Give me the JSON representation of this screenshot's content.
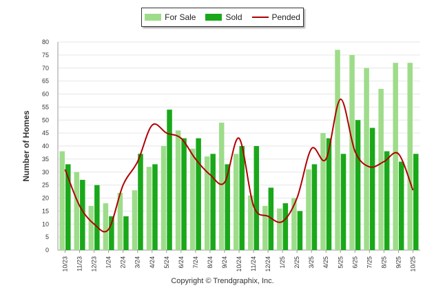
{
  "chart_data": {
    "type": "bar",
    "categories": [
      "10/23",
      "11/23",
      "12/23",
      "1/24",
      "2/24",
      "3/24",
      "4/24",
      "5/24",
      "6/24",
      "7/24",
      "8/24",
      "9/24",
      "10/24",
      "11/24",
      "12/24",
      "1/25",
      "2/25",
      "3/25",
      "4/25",
      "5/25",
      "6/25",
      "7/25",
      "8/25",
      "9/25",
      "10/25"
    ],
    "series": [
      {
        "name": "For Sale",
        "type": "bar",
        "color": "#9edc8a",
        "values": [
          38,
          30,
          17,
          18,
          22,
          23,
          32,
          40,
          46,
          39,
          36,
          49,
          37,
          21,
          17,
          16,
          20,
          31,
          45,
          77,
          75,
          70,
          62,
          72,
          72
        ]
      },
      {
        "name": "Sold",
        "type": "bar",
        "color": "#1aa81a",
        "values": [
          33,
          27,
          25,
          13,
          13,
          37,
          33,
          54,
          43,
          43,
          37,
          33,
          40,
          40,
          24,
          18,
          15,
          33,
          43,
          37,
          50,
          47,
          38,
          34,
          37
        ]
      },
      {
        "name": "Pended",
        "type": "line",
        "color": "#b00000",
        "values": [
          31,
          17,
          10,
          8,
          25,
          34,
          48,
          45,
          43,
          35,
          29,
          26,
          43,
          17,
          13,
          11,
          20,
          39,
          35,
          58,
          38,
          32,
          34,
          37,
          23
        ]
      }
    ],
    "ylim": [
      0,
      80
    ],
    "yticks": [
      0,
      5,
      10,
      15,
      20,
      25,
      30,
      35,
      40,
      45,
      50,
      55,
      60,
      65,
      70,
      75,
      80
    ],
    "ylabel": "Number of Homes",
    "xlabel": "",
    "legend_position": "top-center"
  },
  "legend": {
    "for_sale": "For Sale",
    "sold": "Sold",
    "pended": "Pended"
  },
  "colors": {
    "for_sale": "#9edc8a",
    "sold": "#1aa81a",
    "pended": "#b00000",
    "grid": "#e6e6e6",
    "axis": "#999999"
  },
  "footer": {
    "copyright": "Copyright © Trendgraphix, Inc."
  }
}
